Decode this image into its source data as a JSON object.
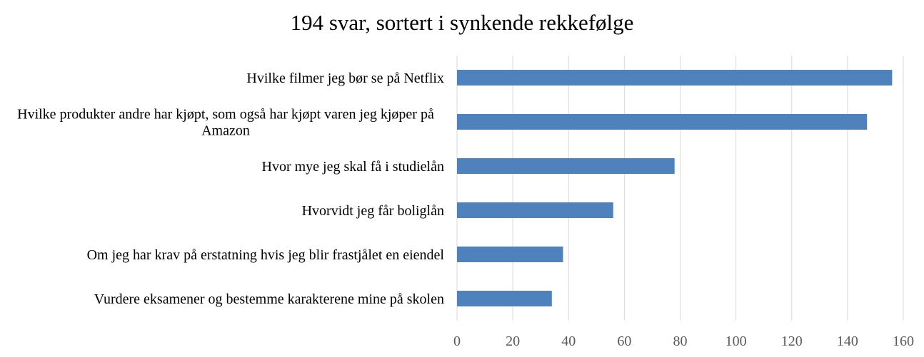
{
  "chart_data": {
    "type": "bar",
    "orientation": "horizontal",
    "title": "194 svar, sortert i synkende rekkefølge",
    "categories": [
      "Hvilke filmer jeg bør se på Netflix",
      "Hvilke produkter andre har kjøpt, som også har kjøpt varen jeg kjøper på Amazon",
      "Hvor mye jeg skal få i studielån",
      "Hvorvidt jeg får boliglån",
      "Om jeg har krav på erstatning hvis jeg blir frastjålet en eiendel",
      "Vurdere eksamener og bestemme karakterene mine på skolen"
    ],
    "category_lines": [
      [
        "Hvilke filmer jeg bør se på Netflix"
      ],
      [
        "Hvilke produkter andre har kjøpt, som også har kjøpt varen jeg kjøper på",
        "Amazon"
      ],
      [
        "Hvor mye jeg skal få i studielån"
      ],
      [
        "Hvorvidt jeg får boliglån"
      ],
      [
        "Om jeg har krav på erstatning hvis jeg blir frastjålet en eiendel"
      ],
      [
        "Vurdere eksamener og bestemme karakterene mine på skolen"
      ]
    ],
    "values": [
      156,
      147,
      78,
      56,
      38,
      34
    ],
    "xlim": [
      0,
      160
    ],
    "xticks": [
      0,
      20,
      40,
      60,
      80,
      100,
      120,
      140,
      160
    ],
    "xlabel": "",
    "ylabel": "",
    "grid": "vertical",
    "legend": "none",
    "bar_color": "#4f81bd",
    "grid_color": "#d9d9d9"
  }
}
